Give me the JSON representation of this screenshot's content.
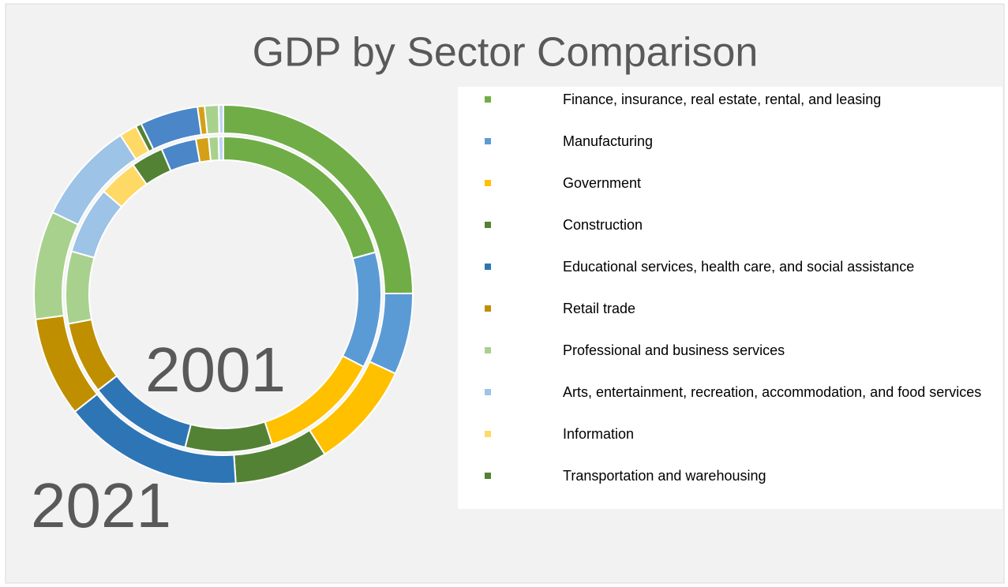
{
  "chart_data": {
    "type": "doughnut",
    "title": "GDP by Sector Comparison",
    "categories": [
      "Finance, insurance, real estate, rental, and leasing",
      "Manufacturing",
      "Government",
      "Construction",
      "Educational services, health care, and social assistance",
      "Retail trade",
      "Professional and business services",
      "Arts, entertainment, recreation, accommodation, and food services",
      "Information",
      "Transportation and warehousing",
      null,
      null,
      null,
      null
    ],
    "colors": [
      "#70ad47",
      "#5b9bd5",
      "#ffc000",
      "#548235",
      "#2e75b6",
      "#bf8f00",
      "#a9d18e",
      "#9dc3e6",
      "#ffd966",
      "#548235",
      "#4a86c8",
      "#d4a017",
      "#a9d18e",
      "#bdd7ee"
    ],
    "series": [
      {
        "name": "2001",
        "values": [
          20.7,
          11.9,
          12.4,
          8.9,
          10.7,
          7.4,
          7.4,
          6.9,
          4.0,
          3.3,
          3.6,
          1.3,
          1.0,
          0.5
        ]
      },
      {
        "name": "2021",
        "values": [
          25.1,
          7.0,
          9.2,
          8.0,
          15.5,
          8.6,
          9.3,
          8.8,
          1.5,
          0.5,
          5.0,
          0.6,
          1.2,
          0.4
        ]
      }
    ],
    "legend": "right"
  }
}
